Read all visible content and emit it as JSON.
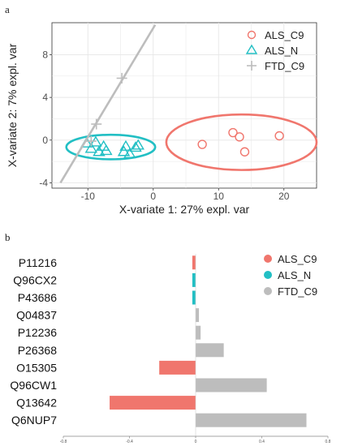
{
  "panels": {
    "a": "a",
    "b": "b"
  },
  "colors": {
    "ALS_C9": "#F0766D",
    "ALS_N": "#22BFC4",
    "FTD_C9": "#BDBDBD",
    "grid": "#E6E6E6",
    "axis_text": "#4D4D4D"
  },
  "chart_data": [
    {
      "type": "scatter",
      "xlabel": "X-variate 1: 27% expl. var",
      "ylabel": "X-variate 2: 7% expl. var",
      "xlim": [
        -15.5,
        25
      ],
      "ylim": [
        -4.5,
        11
      ],
      "xticks": [
        -10,
        0,
        10,
        20
      ],
      "yticks": [
        -4,
        0,
        4,
        8
      ],
      "grid": true,
      "legend": {
        "placement": "top-right",
        "entries": [
          "ALS_C9",
          "ALS_N",
          "FTD_C9"
        ]
      },
      "series": [
        {
          "name": "ALS_C9",
          "marker": "circle",
          "points": [
            [
              7.5,
              -0.4
            ],
            [
              12.2,
              0.7
            ],
            [
              13.2,
              0.3
            ],
            [
              14.0,
              -1.1
            ],
            [
              19.3,
              0.4
            ]
          ],
          "ellipse": {
            "cx": 13.5,
            "cy": -0.2,
            "rx": 11.5,
            "ry": 2.6
          }
        },
        {
          "name": "ALS_N",
          "marker": "triangle",
          "points": [
            [
              -10.2,
              -0.3
            ],
            [
              -9.5,
              -0.8
            ],
            [
              -8.8,
              -0.2
            ],
            [
              -8.3,
              -1.1
            ],
            [
              -7.6,
              -0.6
            ],
            [
              -7.2,
              -1.0
            ],
            [
              -4.5,
              -1.1
            ],
            [
              -4.2,
              -0.6
            ],
            [
              -3.6,
              -1.3
            ],
            [
              -2.7,
              -0.7
            ],
            [
              -2.3,
              -0.5
            ]
          ],
          "ellipse": {
            "cx": -6.5,
            "cy": -0.65,
            "rx": 6.8,
            "ry": 1.15
          }
        },
        {
          "name": "FTD_C9",
          "marker": "plus",
          "points": [
            [
              -8.7,
              1.5
            ],
            [
              -4.8,
              5.8
            ],
            [
              -9.5,
              -0.1
            ]
          ],
          "line": [
            [
              -14.2,
              -4.0
            ],
            [
              0.3,
              10.8
            ]
          ]
        }
      ]
    },
    {
      "type": "bar",
      "orientation": "horizontal",
      "categories": [
        "P11216",
        "Q96CX2",
        "P43686",
        "Q04837",
        "P12236",
        "P26368",
        "O15305",
        "Q96CW1",
        "Q13642",
        "Q6NUP7"
      ],
      "values": [
        -0.02,
        -0.02,
        -0.02,
        0.02,
        0.03,
        0.17,
        -0.22,
        0.43,
        -0.52,
        0.67
      ],
      "groups": [
        "ALS_C9",
        "ALS_N",
        "ALS_N",
        "FTD_C9",
        "FTD_C9",
        "FTD_C9",
        "ALS_C9",
        "FTD_C9",
        "ALS_C9",
        "FTD_C9"
      ],
      "xlim": [
        -0.8,
        0.8
      ],
      "xtick_labels": [
        "-0.8",
        "-0.4",
        "0",
        "0.4",
        "0.8"
      ],
      "xtick_values": [
        -0.8,
        -0.4,
        0,
        0.4,
        0.8
      ],
      "legend": {
        "placement": "top-right",
        "entries": [
          "ALS_C9",
          "ALS_N",
          "FTD_C9"
        ]
      }
    }
  ]
}
